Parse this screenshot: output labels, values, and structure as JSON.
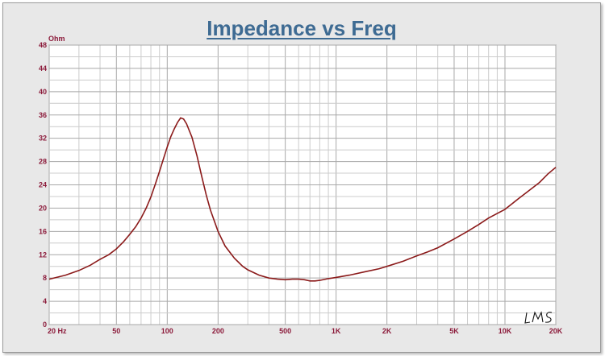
{
  "chart_data": {
    "type": "line",
    "title": "Impedance vs Freq",
    "ylabel": "Ohm",
    "xlabel": "",
    "xscale": "log",
    "xlim": [
      20,
      20000
    ],
    "ylim": [
      0,
      48
    ],
    "grid": true,
    "legend": "none",
    "yticks": [
      0,
      4,
      8,
      12,
      16,
      20,
      24,
      28,
      32,
      36,
      40,
      44,
      48
    ],
    "xtick_labels": [
      {
        "x": 20,
        "label": "20  Hz"
      },
      {
        "x": 50,
        "label": "50"
      },
      {
        "x": 100,
        "label": "100"
      },
      {
        "x": 200,
        "label": "200"
      },
      {
        "x": 500,
        "label": "500"
      },
      {
        "x": 1000,
        "label": "1K"
      },
      {
        "x": 2000,
        "label": "2K"
      },
      {
        "x": 5000,
        "label": "5K"
      },
      {
        "x": 10000,
        "label": "10K"
      },
      {
        "x": 20000,
        "label": "20K"
      }
    ],
    "series": [
      {
        "color": "#8b1a1a",
        "points": [
          [
            20,
            7.8
          ],
          [
            25,
            8.5
          ],
          [
            30,
            9.3
          ],
          [
            35,
            10.2
          ],
          [
            40,
            11.2
          ],
          [
            45,
            12.0
          ],
          [
            50,
            13.0
          ],
          [
            55,
            14.2
          ],
          [
            60,
            15.5
          ],
          [
            65,
            16.8
          ],
          [
            70,
            18.3
          ],
          [
            75,
            20.0
          ],
          [
            80,
            21.9
          ],
          [
            85,
            24.1
          ],
          [
            90,
            26.3
          ],
          [
            95,
            28.5
          ],
          [
            100,
            30.5
          ],
          [
            105,
            32.3
          ],
          [
            110,
            33.6
          ],
          [
            115,
            34.7
          ],
          [
            120,
            35.5
          ],
          [
            125,
            35.3
          ],
          [
            130,
            34.5
          ],
          [
            140,
            32.2
          ],
          [
            150,
            29.0
          ],
          [
            160,
            25.5
          ],
          [
            170,
            22.3
          ],
          [
            180,
            19.7
          ],
          [
            200,
            16.0
          ],
          [
            220,
            13.5
          ],
          [
            250,
            11.4
          ],
          [
            280,
            10.0
          ],
          [
            300,
            9.4
          ],
          [
            350,
            8.5
          ],
          [
            400,
            8.0
          ],
          [
            450,
            7.8
          ],
          [
            500,
            7.7
          ],
          [
            550,
            7.8
          ],
          [
            600,
            7.8
          ],
          [
            650,
            7.7
          ],
          [
            700,
            7.5
          ],
          [
            750,
            7.5
          ],
          [
            800,
            7.6
          ],
          [
            900,
            7.9
          ],
          [
            1000,
            8.1
          ],
          [
            1200,
            8.5
          ],
          [
            1500,
            9.1
          ],
          [
            1800,
            9.6
          ],
          [
            2000,
            10.0
          ],
          [
            2500,
            10.9
          ],
          [
            3000,
            11.8
          ],
          [
            3500,
            12.5
          ],
          [
            4000,
            13.2
          ],
          [
            5000,
            14.7
          ],
          [
            6000,
            16.0
          ],
          [
            7000,
            17.2
          ],
          [
            8000,
            18.3
          ],
          [
            10000,
            19.8
          ],
          [
            12000,
            21.6
          ],
          [
            14000,
            23.1
          ],
          [
            16000,
            24.4
          ],
          [
            18000,
            25.9
          ],
          [
            20000,
            27.0
          ]
        ]
      }
    ]
  },
  "signature": "LMS"
}
